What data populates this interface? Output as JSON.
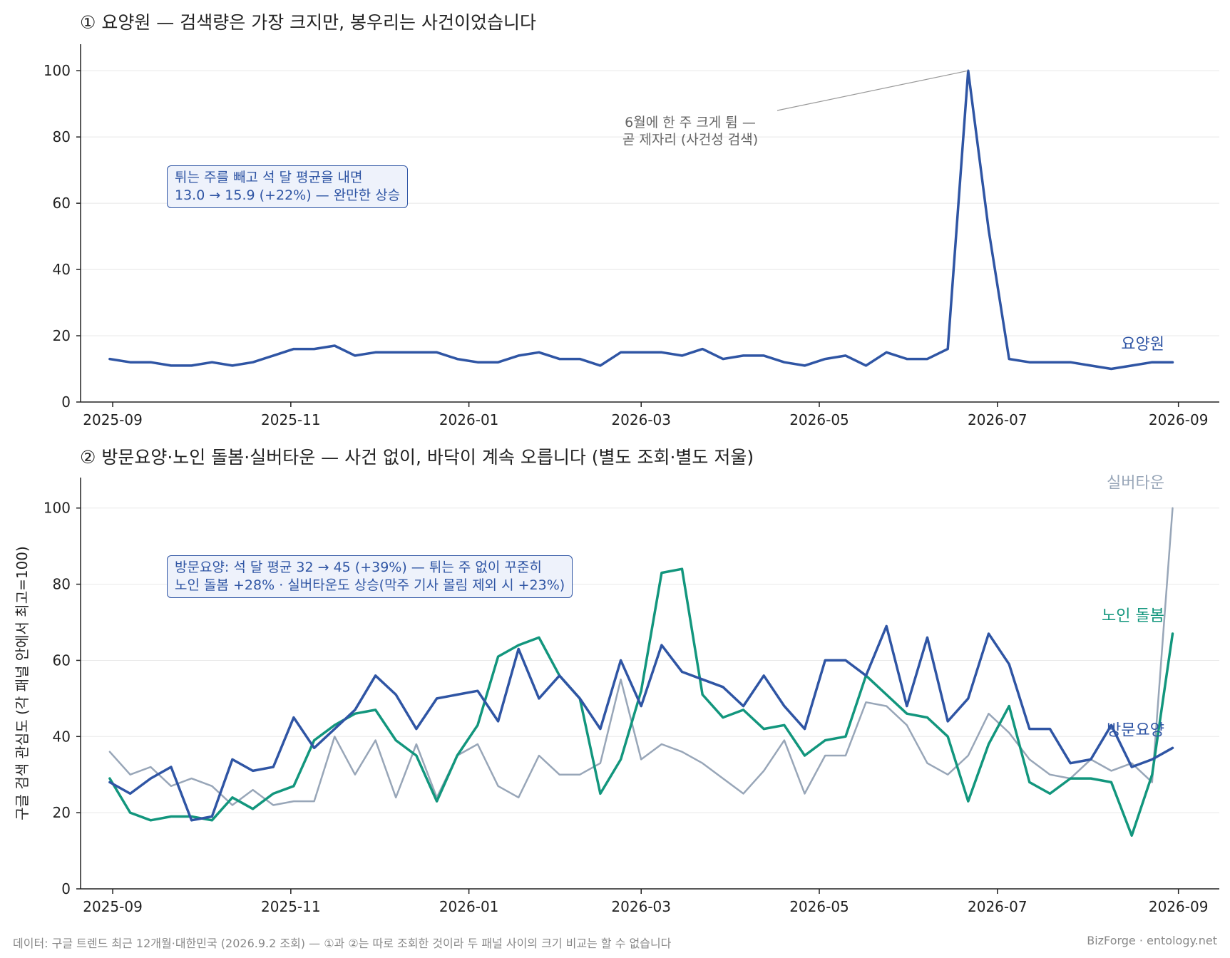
{
  "panels": [
    {
      "title": "① 요양원 — 검색량은 가장 크지만, 봉우리는 사건이었습니다",
      "ylim": [
        0,
        108
      ],
      "yticks": [
        0,
        20,
        40,
        60,
        80,
        100
      ],
      "box": [
        "튀는 주를 빼고 석 달 평균을 내면",
        "13.0 → 15.9 (+22%) — 완만한 상승"
      ],
      "annotation": [
        "6월에 한 주 크게 튐 —",
        "곧 제자리 (사건성 검색)"
      ]
    },
    {
      "title": "② 방문요양·노인 돌봄·실버타운 — 사건 없이, 바닥이 계속 오릅니다 (별도 조회·별도 저울)",
      "ylim": [
        0,
        108
      ],
      "yticks": [
        0,
        20,
        40,
        60,
        80,
        100
      ],
      "ylabel": "구글 검색 관심도 (각 패널 안에서 최고=100)",
      "box": [
        "방문요양: 석 달 평균 32 → 45 (+39%) — 튀는 주 없이 꾸준히",
        "노인 돌봄 +28% · 실버타운도 상승(막주 기사 몰림 제외 시 +23%)"
      ]
    }
  ],
  "xticks": [
    "2025-09",
    "2025-11",
    "2026-01",
    "2026-03",
    "2026-05",
    "2026-07",
    "2026-09"
  ],
  "footer": {
    "source": "데이터: 구글 트렌드 최근 12개월·대한민국 (2026.9.2 조회) — ①과 ②는 따로 조회한 것이라 두 패널 사이의 크기 비교는 할 수 없습니다",
    "brand": "BizForge · entology.net"
  },
  "colors": {
    "blue": "#2f55a4",
    "green": "#12967d",
    "gray": "#98a6b8"
  },
  "chart_data": [
    {
      "type": "line",
      "title": "① 요양원 — 검색량은 가장 크지만, 봉우리는 사건이었습니다",
      "x_start": "2025-08-31",
      "x_step_days": 7,
      "ylim": [
        0,
        108
      ],
      "series": [
        {
          "name": "요양원",
          "color": "#2f55a4",
          "values": [
            13,
            12,
            12,
            11,
            11,
            12,
            11,
            12,
            14,
            16,
            16,
            17,
            14,
            15,
            15,
            15,
            15,
            13,
            12,
            12,
            14,
            15,
            13,
            13,
            11,
            15,
            15,
            15,
            14,
            16,
            13,
            14,
            14,
            12,
            11,
            13,
            14,
            11,
            15,
            13,
            13,
            16,
            100,
            52,
            13,
            12,
            12,
            12,
            11,
            10,
            11,
            12,
            12
          ]
        }
      ]
    },
    {
      "type": "line",
      "title": "② 방문요양·노인 돌봄·실버타운 — 사건 없이, 바닥이 계속 오릅니다 (별도 조회·별도 저울)",
      "ylabel": "구글 검색 관심도 (각 패널 안에서 최고=100)",
      "x_start": "2025-08-31",
      "x_step_days": 7,
      "ylim": [
        0,
        108
      ],
      "series": [
        {
          "name": "실버타운",
          "color": "#98a6b8",
          "values": [
            36,
            30,
            32,
            27,
            29,
            27,
            22,
            26,
            22,
            23,
            23,
            40,
            30,
            39,
            24,
            38,
            24,
            35,
            38,
            27,
            24,
            35,
            30,
            30,
            33,
            55,
            34,
            38,
            36,
            33,
            29,
            25,
            31,
            39,
            25,
            35,
            35,
            49,
            48,
            43,
            33,
            30,
            35,
            46,
            41,
            34,
            30,
            29,
            34,
            31,
            33,
            28,
            100
          ]
        },
        {
          "name": "노인 돌봄",
          "color": "#12967d",
          "values": [
            29,
            20,
            18,
            19,
            19,
            18,
            24,
            21,
            25,
            27,
            39,
            43,
            46,
            47,
            39,
            35,
            23,
            35,
            43,
            61,
            64,
            66,
            56,
            50,
            25,
            34,
            52,
            83,
            84,
            51,
            45,
            47,
            42,
            43,
            35,
            39,
            40,
            56,
            51,
            46,
            45,
            40,
            23,
            38,
            48,
            28,
            25,
            29,
            29,
            28,
            14,
            30,
            67
          ]
        },
        {
          "name": "방문요양",
          "color": "#2f55a4",
          "values": [
            28,
            25,
            29,
            32,
            18,
            19,
            34,
            31,
            32,
            45,
            37,
            42,
            47,
            56,
            51,
            42,
            50,
            51,
            52,
            44,
            63,
            50,
            56,
            50,
            42,
            60,
            48,
            64,
            57,
            55,
            53,
            48,
            56,
            48,
            42,
            60,
            60,
            56,
            69,
            48,
            66,
            44,
            50,
            67,
            59,
            42,
            42,
            33,
            34,
            43,
            32,
            34,
            37
          ]
        }
      ]
    }
  ]
}
